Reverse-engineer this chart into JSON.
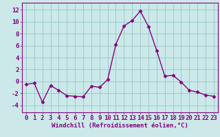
{
  "x": [
    0,
    1,
    2,
    3,
    4,
    5,
    6,
    7,
    8,
    9,
    10,
    11,
    12,
    13,
    14,
    15,
    16,
    17,
    18,
    19,
    20,
    21,
    22,
    23
  ],
  "y": [
    -0.5,
    -0.3,
    -3.5,
    -0.7,
    -1.5,
    -2.4,
    -2.5,
    -2.6,
    -0.8,
    -1.0,
    0.3,
    6.2,
    9.3,
    10.2,
    11.8,
    9.2,
    5.2,
    0.9,
    1.0,
    -0.1,
    -1.5,
    -1.8,
    -2.3,
    -2.5
  ],
  "line_color": "#800080",
  "marker": "D",
  "markersize": 2.5,
  "linewidth": 1.0,
  "xlabel": "Windchill (Refroidissement éolien,°C)",
  "xlabel_fontsize": 6.5,
  "ylabel_ticks": [
    -4,
    -2,
    0,
    2,
    4,
    6,
    8,
    10,
    12
  ],
  "xlim": [
    -0.5,
    23.5
  ],
  "ylim": [
    -5.2,
    13.2
  ],
  "bg_color": "#cce8e8",
  "grid_color": "#99cccc",
  "tick_fontsize": 6.5,
  "title": ""
}
